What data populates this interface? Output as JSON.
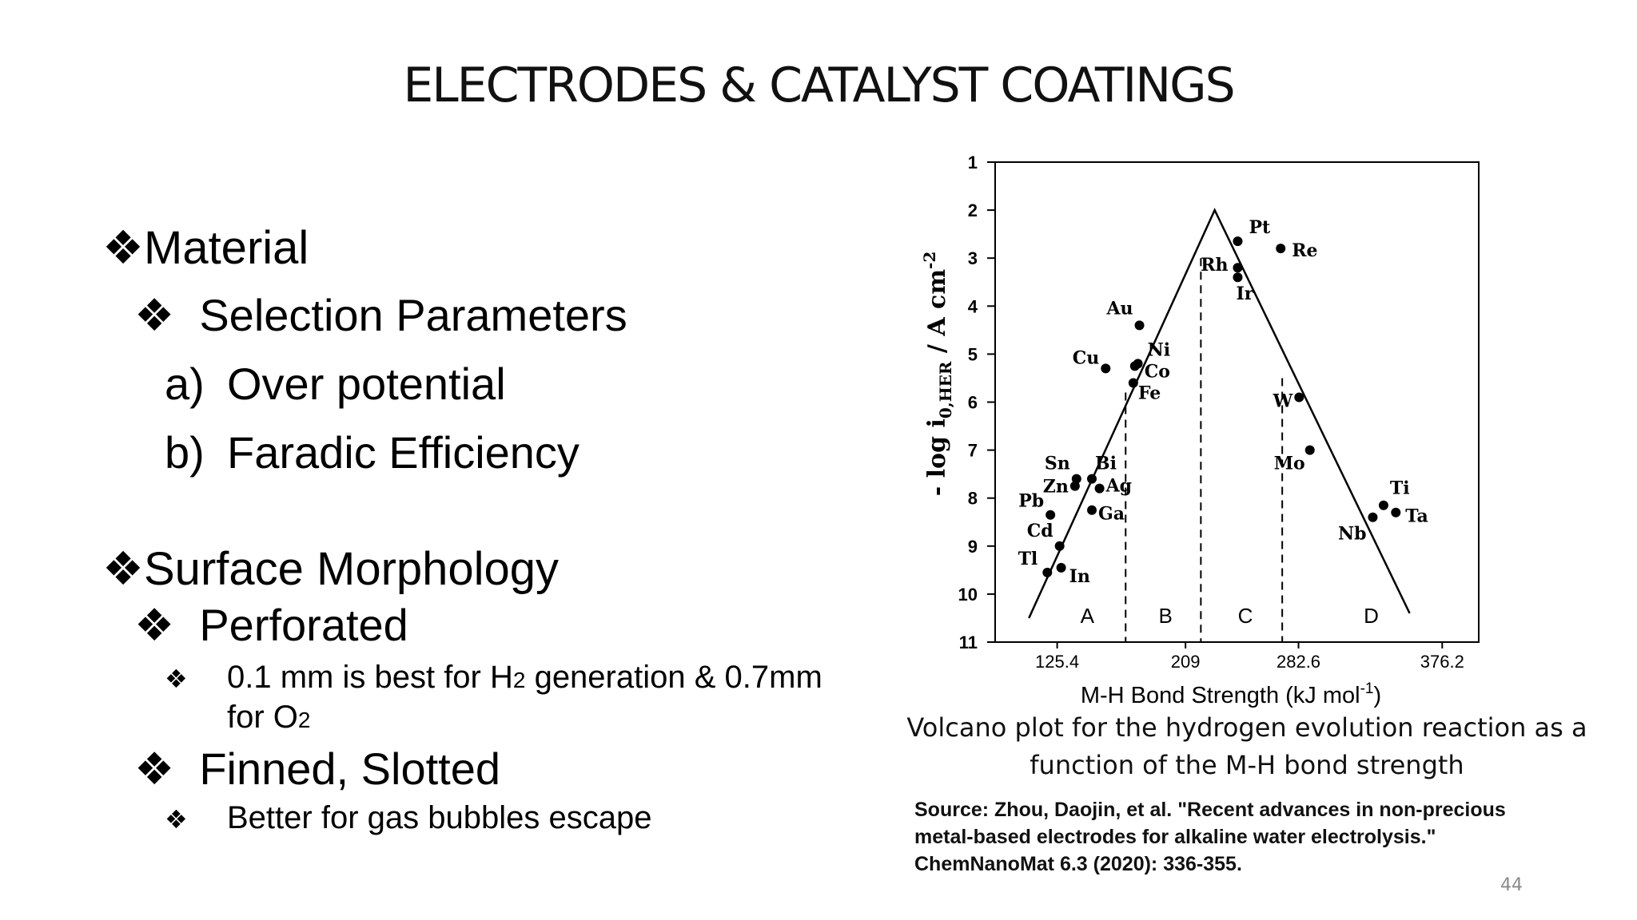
{
  "slide": {
    "title": "ELECTRODES & CATALYST COATINGS",
    "page_number": "44"
  },
  "bullets": {
    "bullet_glyph": "❖",
    "material": "Material",
    "selection": "Selection Parameters",
    "item_a_marker": "a)",
    "item_a": "Over potential",
    "item_b_marker": "b)",
    "item_b": "Faradic Efficiency",
    "surface": "Surface Morphology",
    "perforated": "Perforated",
    "perf_detail_1": "0.1 mm is best for H",
    "perf_detail_h_sub": "2",
    "perf_detail_2": " generation & 0.7mm",
    "perf_detail_3": "for O",
    "perf_detail_o_sub": "2",
    "finned": "Finned, Slotted",
    "finned_detail": "Better for gas bubbles escape"
  },
  "figure": {
    "caption_line1": "Volcano plot for the hydrogen evolution reaction as a",
    "caption_line2": "function of the M-H bond strength",
    "source_line1": "Source: Zhou, Daojin, et al. \"Recent advances in non-precious",
    "source_line2": "metal-based electrodes for alkaline water electrolysis.\"",
    "source_line3": "ChemNanoMat 6.3 (2020): 336-355."
  },
  "chart_data": {
    "type": "scatter",
    "xlabel": "M-H Bond Strength (kJ mol",
    "xlabel_sup": "-1",
    "xlabel_end": ")",
    "ylabel_pre": "- log i",
    "ylabel_sub": "0,HER",
    "ylabel_post": " / A cm",
    "ylabel_sup": "-2",
    "y_inverted": true,
    "xlim": [
      85,
      400
    ],
    "ylim": [
      11,
      1
    ],
    "x_ticks": [
      125.4,
      209,
      282.6,
      376.2
    ],
    "x_tick_labels": [
      "125.4",
      "209",
      "282.6",
      "376.2"
    ],
    "y_ticks": [
      1,
      2,
      3,
      4,
      5,
      6,
      7,
      8,
      9,
      10,
      11
    ],
    "y_tick_labels": [
      "1",
      "2",
      "3",
      "4",
      "5",
      "6",
      "7",
      "8",
      "9",
      "10",
      "11"
    ],
    "region_boundaries_x": [
      170,
      219,
      272
    ],
    "region_boundary_tops": [
      5.8,
      3.0,
      5.5
    ],
    "regions": [
      {
        "label": "A",
        "x": 145
      },
      {
        "label": "B",
        "x": 196
      },
      {
        "label": "C",
        "x": 248
      },
      {
        "label": "D",
        "x": 330
      }
    ],
    "volcano_lines": [
      [
        [
          107,
          10.5
        ],
        [
          228,
          2.0
        ],
        [
          355,
          10.4
        ]
      ]
    ],
    "points": [
      {
        "label": "Pt",
        "x": 243,
        "y": 2.65
      },
      {
        "label": "Re",
        "x": 271,
        "y": 2.8
      },
      {
        "label": "Rh",
        "x": 243,
        "y": 3.2
      },
      {
        "label": "Ir",
        "x": 243,
        "y": 3.4
      },
      {
        "label": "Au",
        "x": 179,
        "y": 4.4
      },
      {
        "label": "Ni",
        "x": 178,
        "y": 5.2
      },
      {
        "label": "Co",
        "x": 176,
        "y": 5.25
      },
      {
        "label": "Fe",
        "x": 175,
        "y": 5.6
      },
      {
        "label": "Cu",
        "x": 157,
        "y": 5.3
      },
      {
        "label": "W",
        "x": 283,
        "y": 5.9
      },
      {
        "label": "Mo",
        "x": 290,
        "y": 7.0
      },
      {
        "label": "Sn",
        "x": 138,
        "y": 7.6
      },
      {
        "label": "Zn",
        "x": 137,
        "y": 7.75
      },
      {
        "label": "Bi",
        "x": 148,
        "y": 7.6
      },
      {
        "label": "Ag",
        "x": 153,
        "y": 7.8
      },
      {
        "label": "Ga",
        "x": 148,
        "y": 8.25
      },
      {
        "label": "Pb",
        "x": 121,
        "y": 8.35
      },
      {
        "label": "Cd",
        "x": 127,
        "y": 9.0
      },
      {
        "label": "Tl",
        "x": 119,
        "y": 9.55
      },
      {
        "label": "In",
        "x": 128,
        "y": 9.45
      },
      {
        "label": "Ti",
        "x": 338,
        "y": 8.15
      },
      {
        "label": "Ta",
        "x": 346,
        "y": 8.3
      },
      {
        "label": "Nb",
        "x": 331,
        "y": 8.4
      }
    ],
    "colors": {
      "points": "#000000",
      "lines": "#000000"
    }
  }
}
